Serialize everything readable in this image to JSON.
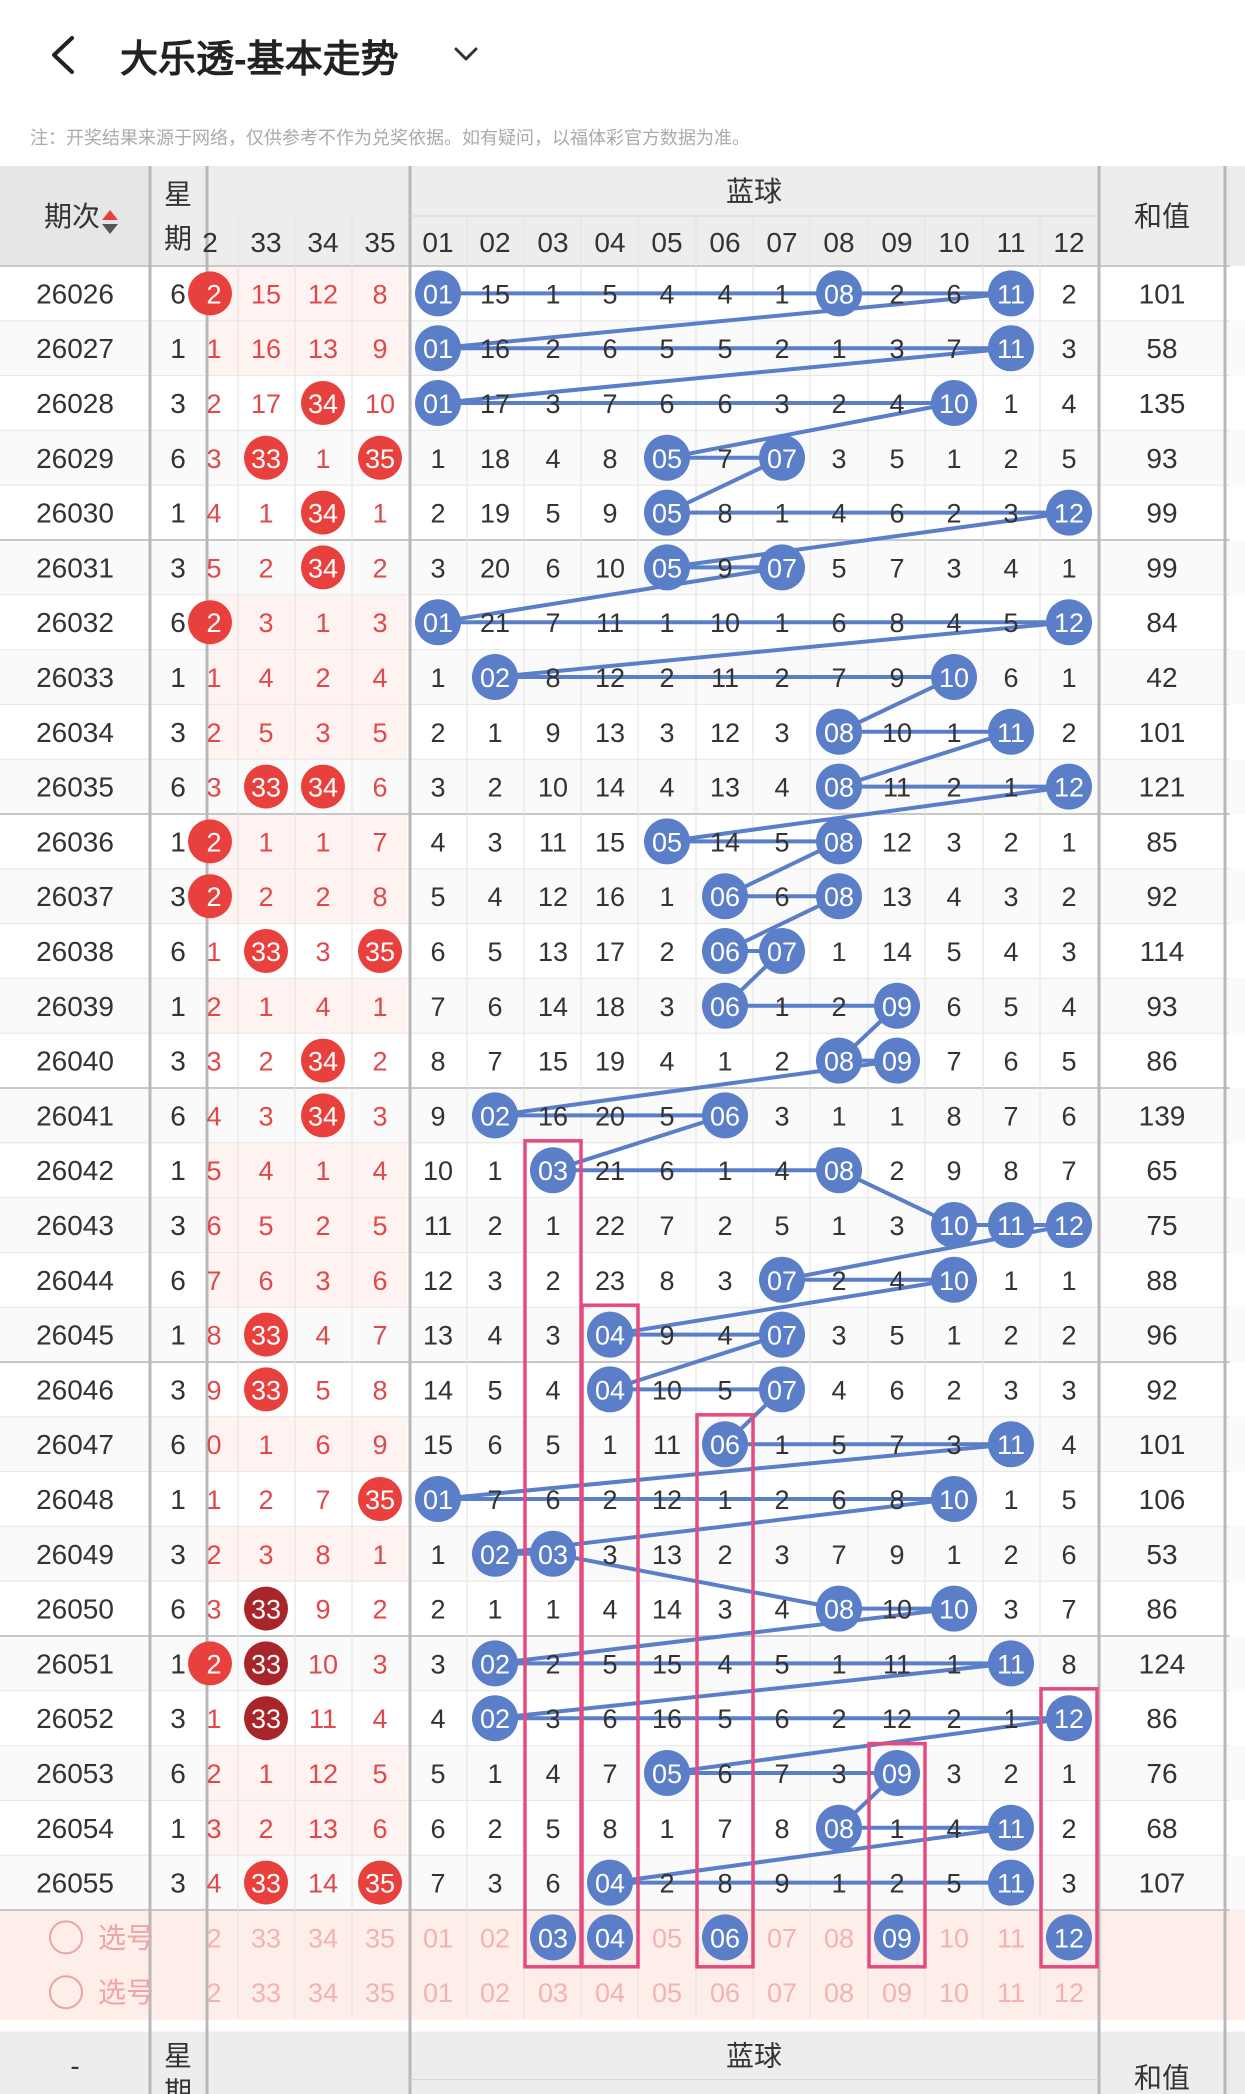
{
  "header": {
    "back_icon": "chevron-left-icon",
    "title": "大乐透-基本走势",
    "dropdown_icon": "chevron-down-icon"
  },
  "note": "注：开奖结果来源于网络，仅供参考不作为兑奖依据。如有疑问，以福体彩官方数据为准。",
  "table": {
    "period_header": "期次",
    "week_header_1": "星",
    "week_header_2": "期",
    "blue_header": "蓝球",
    "sum_header": "和值",
    "red_partial_col": "2",
    "red_cols": [
      "33",
      "34",
      "35"
    ],
    "blue_cols": [
      "01",
      "02",
      "03",
      "04",
      "05",
      "06",
      "07",
      "08",
      "09",
      "10",
      "11",
      "12"
    ],
    "rows": [
      {
        "p": "26026",
        "w": "6",
        "ry": "2",
        "r": [
          "15",
          "12",
          "8"
        ],
        "h": [
          0,
          0,
          0
        ],
        "rh": true,
        "b": [
          "01",
          "15",
          "1",
          "5",
          "4",
          "4",
          "1",
          "08",
          "2",
          "6",
          "11",
          "2"
        ],
        "s": "101"
      },
      {
        "p": "26027",
        "w": "1",
        "ry": "1",
        "r": [
          "16",
          "13",
          "9"
        ],
        "h": [
          0,
          0,
          0
        ],
        "rh": false,
        "b": [
          "01",
          "16",
          "2",
          "6",
          "5",
          "5",
          "2",
          "1",
          "3",
          "7",
          "11",
          "3"
        ],
        "s": "58"
      },
      {
        "p": "26028",
        "w": "3",
        "ry": "2",
        "r": [
          "17",
          "34",
          "10"
        ],
        "h": [
          0,
          1,
          0
        ],
        "rh": false,
        "b": [
          "01",
          "17",
          "3",
          "7",
          "6",
          "6",
          "3",
          "2",
          "4",
          "10",
          "1",
          "4"
        ],
        "s": "135"
      },
      {
        "p": "26029",
        "w": "6",
        "ry": "3",
        "r": [
          "33",
          "1",
          "35"
        ],
        "h": [
          1,
          0,
          1
        ],
        "rh": false,
        "b": [
          "1",
          "18",
          "4",
          "8",
          "05",
          "7",
          "07",
          "3",
          "5",
          "1",
          "2",
          "5"
        ],
        "s": "93"
      },
      {
        "p": "26030",
        "w": "1",
        "ry": "4",
        "r": [
          "1",
          "34",
          "1"
        ],
        "h": [
          0,
          1,
          0
        ],
        "rh": false,
        "b": [
          "2",
          "19",
          "5",
          "9",
          "05",
          "8",
          "1",
          "4",
          "6",
          "2",
          "3",
          "12"
        ],
        "s": "99"
      },
      {
        "p": "26031",
        "w": "3",
        "ry": "5",
        "r": [
          "2",
          "34",
          "2"
        ],
        "h": [
          0,
          1,
          0
        ],
        "rh": false,
        "b": [
          "3",
          "20",
          "6",
          "10",
          "05",
          "9",
          "07",
          "5",
          "7",
          "3",
          "4",
          "1"
        ],
        "s": "99"
      },
      {
        "p": "26032",
        "w": "6",
        "ry": "2",
        "r": [
          "3",
          "1",
          "3"
        ],
        "h": [
          0,
          0,
          0
        ],
        "rh": true,
        "b": [
          "01",
          "21",
          "7",
          "11",
          "1",
          "10",
          "1",
          "6",
          "8",
          "4",
          "5",
          "12"
        ],
        "s": "84"
      },
      {
        "p": "26033",
        "w": "1",
        "ry": "1",
        "r": [
          "4",
          "2",
          "4"
        ],
        "h": [
          0,
          0,
          0
        ],
        "rh": false,
        "b": [
          "1",
          "02",
          "8",
          "12",
          "2",
          "11",
          "2",
          "7",
          "9",
          "10",
          "6",
          "1"
        ],
        "s": "42"
      },
      {
        "p": "26034",
        "w": "3",
        "ry": "2",
        "r": [
          "5",
          "3",
          "5"
        ],
        "h": [
          0,
          0,
          0
        ],
        "rh": false,
        "b": [
          "2",
          "1",
          "9",
          "13",
          "3",
          "12",
          "3",
          "08",
          "10",
          "1",
          "11",
          "2"
        ],
        "s": "101"
      },
      {
        "p": "26035",
        "w": "6",
        "ry": "3",
        "r": [
          "33",
          "34",
          "6"
        ],
        "h": [
          1,
          1,
          0
        ],
        "rh": false,
        "b": [
          "3",
          "2",
          "10",
          "14",
          "4",
          "13",
          "4",
          "08",
          "11",
          "2",
          "1",
          "12"
        ],
        "s": "121"
      },
      {
        "p": "26036",
        "w": "1",
        "ry": "2",
        "r": [
          "1",
          "1",
          "7"
        ],
        "h": [
          0,
          0,
          0
        ],
        "rh": true,
        "b": [
          "4",
          "3",
          "11",
          "15",
          "05",
          "14",
          "5",
          "08",
          "12",
          "3",
          "2",
          "1"
        ],
        "s": "85"
      },
      {
        "p": "26037",
        "w": "3",
        "ry": "2",
        "r": [
          "2",
          "2",
          "8"
        ],
        "h": [
          0,
          0,
          0
        ],
        "rh": true,
        "b": [
          "5",
          "4",
          "12",
          "16",
          "1",
          "06",
          "6",
          "08",
          "13",
          "4",
          "3",
          "2"
        ],
        "s": "92"
      },
      {
        "p": "26038",
        "w": "6",
        "ry": "1",
        "r": [
          "33",
          "3",
          "35"
        ],
        "h": [
          1,
          0,
          1
        ],
        "rh": false,
        "b": [
          "6",
          "5",
          "13",
          "17",
          "2",
          "06",
          "07",
          "1",
          "14",
          "5",
          "4",
          "3"
        ],
        "s": "114"
      },
      {
        "p": "26039",
        "w": "1",
        "ry": "2",
        "r": [
          "1",
          "4",
          "1"
        ],
        "h": [
          0,
          0,
          0
        ],
        "rh": false,
        "b": [
          "7",
          "6",
          "14",
          "18",
          "3",
          "06",
          "1",
          "2",
          "09",
          "6",
          "5",
          "4"
        ],
        "s": "93"
      },
      {
        "p": "26040",
        "w": "3",
        "ry": "3",
        "r": [
          "2",
          "34",
          "2"
        ],
        "h": [
          0,
          1,
          0
        ],
        "rh": false,
        "b": [
          "8",
          "7",
          "15",
          "19",
          "4",
          "1",
          "2",
          "08",
          "09",
          "7",
          "6",
          "5"
        ],
        "s": "86"
      },
      {
        "p": "26041",
        "w": "6",
        "ry": "4",
        "r": [
          "3",
          "34",
          "3"
        ],
        "h": [
          0,
          1,
          0
        ],
        "rh": false,
        "b": [
          "9",
          "02",
          "16",
          "20",
          "5",
          "06",
          "3",
          "1",
          "1",
          "8",
          "7",
          "6"
        ],
        "s": "139"
      },
      {
        "p": "26042",
        "w": "1",
        "ry": "5",
        "r": [
          "4",
          "1",
          "4"
        ],
        "h": [
          0,
          0,
          0
        ],
        "rh": false,
        "b": [
          "10",
          "1",
          "03",
          "21",
          "6",
          "1",
          "4",
          "08",
          "2",
          "9",
          "8",
          "7"
        ],
        "s": "65"
      },
      {
        "p": "26043",
        "w": "3",
        "ry": "6",
        "r": [
          "5",
          "2",
          "5"
        ],
        "h": [
          0,
          0,
          0
        ],
        "rh": false,
        "b": [
          "11",
          "2",
          "1",
          "22",
          "7",
          "2",
          "5",
          "1",
          "3",
          "10",
          "11",
          "12"
        ],
        "s": "75"
      },
      {
        "p": "26044",
        "w": "6",
        "ry": "7",
        "r": [
          "6",
          "3",
          "6"
        ],
        "h": [
          0,
          0,
          0
        ],
        "rh": false,
        "b": [
          "12",
          "3",
          "2",
          "23",
          "8",
          "3",
          "07",
          "2",
          "4",
          "10",
          "1",
          "1"
        ],
        "s": "88"
      },
      {
        "p": "26045",
        "w": "1",
        "ry": "8",
        "r": [
          "33",
          "4",
          "7"
        ],
        "h": [
          1,
          0,
          0
        ],
        "rh": false,
        "b": [
          "13",
          "4",
          "3",
          "04",
          "9",
          "4",
          "07",
          "3",
          "5",
          "1",
          "2",
          "2"
        ],
        "s": "96"
      },
      {
        "p": "26046",
        "w": "3",
        "ry": "9",
        "r": [
          "33",
          "5",
          "8"
        ],
        "h": [
          1,
          0,
          0
        ],
        "rh": false,
        "b": [
          "14",
          "5",
          "4",
          "04",
          "10",
          "5",
          "07",
          "4",
          "6",
          "2",
          "3",
          "3"
        ],
        "s": "92"
      },
      {
        "p": "26047",
        "w": "6",
        "ry": "0",
        "r": [
          "1",
          "6",
          "9"
        ],
        "h": [
          0,
          0,
          0
        ],
        "rh": false,
        "b": [
          "15",
          "6",
          "5",
          "1",
          "11",
          "06",
          "1",
          "5",
          "7",
          "3",
          "11",
          "4"
        ],
        "s": "101"
      },
      {
        "p": "26048",
        "w": "1",
        "ry": "1",
        "r": [
          "2",
          "7",
          "35"
        ],
        "h": [
          0,
          0,
          1
        ],
        "rh": false,
        "b": [
          "01",
          "7",
          "6",
          "2",
          "12",
          "1",
          "2",
          "6",
          "8",
          "10",
          "1",
          "5"
        ],
        "s": "106"
      },
      {
        "p": "26049",
        "w": "3",
        "ry": "2",
        "r": [
          "3",
          "8",
          "1"
        ],
        "h": [
          0,
          0,
          0
        ],
        "rh": false,
        "b": [
          "1",
          "02",
          "03",
          "3",
          "13",
          "2",
          "3",
          "7",
          "9",
          "1",
          "2",
          "6"
        ],
        "s": "53"
      },
      {
        "p": "26050",
        "w": "6",
        "ry": "3",
        "r": [
          "33",
          "9",
          "2"
        ],
        "h": [
          2,
          0,
          0
        ],
        "rh": false,
        "b": [
          "2",
          "1",
          "1",
          "4",
          "14",
          "3",
          "4",
          "08",
          "10",
          "10",
          "3",
          "7"
        ],
        "s": "86"
      },
      {
        "p": "26051",
        "w": "1",
        "ry": "2",
        "r": [
          "33",
          "10",
          "3"
        ],
        "h": [
          2,
          0,
          0
        ],
        "rh": true,
        "b": [
          "3",
          "02",
          "2",
          "5",
          "15",
          "4",
          "5",
          "1",
          "11",
          "1",
          "11",
          "8"
        ],
        "s": "124"
      },
      {
        "p": "26052",
        "w": "3",
        "ry": "1",
        "r": [
          "33",
          "11",
          "4"
        ],
        "h": [
          2,
          0,
          0
        ],
        "rh": false,
        "b": [
          "4",
          "02",
          "3",
          "6",
          "16",
          "5",
          "6",
          "2",
          "12",
          "2",
          "1",
          "12"
        ],
        "s": "86"
      },
      {
        "p": "26053",
        "w": "6",
        "ry": "2",
        "r": [
          "1",
          "12",
          "5"
        ],
        "h": [
          0,
          0,
          0
        ],
        "rh": false,
        "b": [
          "5",
          "1",
          "4",
          "7",
          "05",
          "6",
          "7",
          "3",
          "09",
          "3",
          "2",
          "1"
        ],
        "s": "76"
      },
      {
        "p": "26054",
        "w": "1",
        "ry": "3",
        "r": [
          "2",
          "13",
          "6"
        ],
        "h": [
          0,
          0,
          0
        ],
        "rh": false,
        "b": [
          "6",
          "2",
          "5",
          "8",
          "1",
          "7",
          "8",
          "08",
          "1",
          "4",
          "11",
          "2"
        ],
        "s": "68"
      },
      {
        "p": "26055",
        "w": "3",
        "ry": "4",
        "r": [
          "33",
          "14",
          "35"
        ],
        "h": [
          1,
          0,
          1
        ],
        "rh": false,
        "b": [
          "7",
          "3",
          "6",
          "04",
          "2",
          "8",
          "9",
          "1",
          "2",
          "5",
          "11",
          "3"
        ],
        "s": "107"
      }
    ],
    "select_label": "选号",
    "select_rows": [
      {
        "ry": "2",
        "r": [
          "33",
          "34",
          "35"
        ],
        "b": [
          "01",
          "02",
          "03",
          "04",
          "05",
          "06",
          "07",
          "08",
          "09",
          "10",
          "11",
          "12"
        ],
        "picked": [
          2,
          3,
          5,
          8,
          11
        ]
      },
      {
        "ry": "2",
        "r": [
          "33",
          "34",
          "35"
        ],
        "b": [
          "01",
          "02",
          "03",
          "04",
          "05",
          "06",
          "07",
          "08",
          "09",
          "10",
          "11",
          "12"
        ],
        "picked": []
      }
    ],
    "footer_week_1": "星",
    "footer_week_2": "期",
    "footer_period": "-",
    "footer_blue": "蓝球",
    "footer_sum": "和值"
  },
  "colors": {
    "blue_ball": "#5b7ec8",
    "red_ball": "#e8403d",
    "dark_red_ball": "#a8262a",
    "red_text": "#e0494a",
    "pink_box": "#e54b7e",
    "header_bg": "#ededed",
    "select_bg": "#fdeeea"
  }
}
